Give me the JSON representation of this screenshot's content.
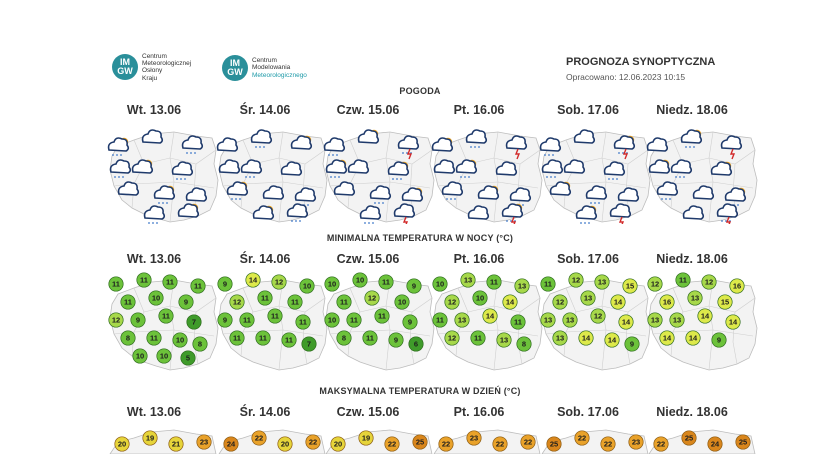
{
  "header": {
    "logo1": {
      "badge_top": "IM",
      "badge_bottom": "GW",
      "lines": [
        "Centrum",
        "Meteorologicznej",
        "Osłony",
        "Kraju"
      ]
    },
    "logo2": {
      "badge_top": "IM",
      "badge_bottom": "GW",
      "lines": [
        "Centrum",
        "Modelowania",
        "Meteorologicznego"
      ]
    },
    "title": "PROGNOZA SYNOPTYCZNA",
    "prepared": "Opracowano: 12.06.2023 10:15"
  },
  "sections": {
    "weather": "POGODA",
    "min_temp": "MINIMALNA TEMPERATURA W NOCY (°C)",
    "max_temp": "MAKSYMALNA TEMPERATURA W DZIEŃ (°C)"
  },
  "days": [
    "Wt. 13.06",
    "Śr. 14.06",
    "Czw. 15.06",
    "Pt. 16.06",
    "Sob. 17.06",
    "Niedz. 18.06"
  ],
  "colors": {
    "green_dark": "#3f9b2a",
    "green": "#6cc23a",
    "green_light": "#a7d84a",
    "yellow": "#dde94a",
    "orange": "#e9a22a",
    "orange_dark": "#d9861c",
    "cloud": "#1f3a6b",
    "sun": "#f2a61d",
    "rain": "#3e78c9",
    "storm": "#d22b2b"
  },
  "min_temps": [
    [
      "11",
      "11",
      "11",
      "11",
      "11",
      "10",
      "9",
      "12",
      "9",
      "11",
      "7",
      "8",
      "11",
      "10",
      "8",
      "10",
      "10",
      "5"
    ],
    [
      "9",
      "14",
      "12",
      "10",
      "12",
      "11",
      "11",
      "9",
      "11",
      "11",
      "11",
      "11",
      "11",
      "11",
      "7"
    ],
    [
      "10",
      "10",
      "11",
      "9",
      "11",
      "12",
      "10",
      "10",
      "11",
      "11",
      "9",
      "8",
      "11",
      "9",
      "6"
    ],
    [
      "10",
      "13",
      "11",
      "13",
      "12",
      "10",
      "14",
      "11",
      "13",
      "14",
      "11",
      "12",
      "11",
      "13",
      "8"
    ],
    [
      "11",
      "12",
      "13",
      "15",
      "12",
      "13",
      "14",
      "13",
      "13",
      "12",
      "14",
      "13",
      "14",
      "14",
      "9"
    ],
    [
      "12",
      "11",
      "12",
      "16",
      "16",
      "13",
      "15",
      "13",
      "13",
      "14",
      "14",
      "14",
      "14",
      "9"
    ]
  ],
  "max_temps": [
    [
      "20",
      "19",
      "21",
      "23"
    ],
    [
      "24",
      "22",
      "20",
      "22"
    ],
    [
      "20",
      "19",
      "22",
      "25"
    ],
    [
      "22",
      "23",
      "22",
      "22"
    ],
    [
      "25",
      "22",
      "22",
      "23"
    ],
    [
      "22",
      "25",
      "24",
      "25"
    ]
  ]
}
